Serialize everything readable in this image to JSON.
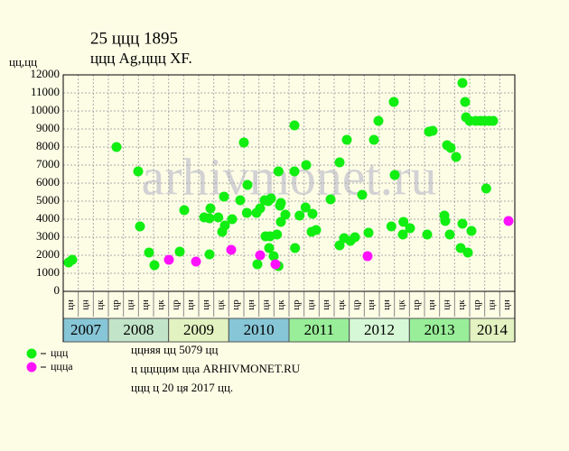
{
  "chart_data": {
    "type": "scatter",
    "title": "25 ццц 1895",
    "subtitle": "ццц Ag,ццц XF.",
    "y_unit": "цц,цц",
    "watermark": "arhivmonet.ru",
    "xlim": [
      0,
      30
    ],
    "ylim": [
      0,
      12000
    ],
    "yticks": [
      0,
      1000,
      2000,
      3000,
      4000,
      5000,
      6000,
      7000,
      8000,
      9000,
      10000,
      11000,
      12000
    ],
    "grid": true,
    "years": [
      {
        "label": "2007",
        "color": "#87c6d6",
        "months": [
          "цн",
          "цн",
          "цк"
        ]
      },
      {
        "label": "2008",
        "color": "#c2e4c8",
        "months": [
          "цр",
          "цн",
          "цн",
          "цк"
        ]
      },
      {
        "label": "2009",
        "color": "#e2f2c0",
        "months": [
          "цр",
          "цн",
          "цн",
          "цк"
        ]
      },
      {
        "label": "2010",
        "color": "#87c6d6",
        "months": [
          "цр",
          "цн",
          "цн",
          "цк"
        ]
      },
      {
        "label": "2011",
        "color": "#99ee99",
        "months": [
          "цр",
          "цн",
          "цн",
          "цк"
        ]
      },
      {
        "label": "2012",
        "color": "#d6f8d6",
        "months": [
          "цр",
          "цн",
          "цн",
          "цк"
        ]
      },
      {
        "label": "2013",
        "color": "#99ee99",
        "months": [
          "цр",
          "цн",
          "цн",
          "цк"
        ]
      },
      {
        "label": "2014",
        "color": "#e2f2c0",
        "months": [
          "цр",
          "цн",
          "цн"
        ]
      }
    ],
    "series": [
      {
        "name": "ццц",
        "color": "#11ee11",
        "x": [
          0.36,
          0.6,
          3.54,
          4.98,
          5.1,
          5.7,
          6.06,
          7.74,
          8.04,
          9.36,
          9.72,
          9.72,
          9.78,
          10.3,
          10.56,
          10.68,
          10.74,
          11.22,
          11.76,
          12,
          12.2,
          12.24,
          12.84,
          12.9,
          13.08,
          13.38,
          13.44,
          13.62,
          13.68,
          13.74,
          13.8,
          13.98,
          14.2,
          14.3,
          14.3,
          14.4,
          14.46,
          14.46,
          14.76,
          15.36,
          15.4,
          15.36,
          15.7,
          16.1,
          16.14,
          16.5,
          16.56,
          16.8,
          17.76,
          18.36,
          18.36,
          18.66,
          18.84,
          19.08,
          19.38,
          19.86,
          20.28,
          20.64,
          20.94,
          21.96,
          22.02,
          21.8,
          22.6,
          22.56,
          23.04,
          24.18,
          24.3,
          24.54,
          25.32,
          25.38,
          25.5,
          25.68,
          25.74,
          26.1,
          26.4,
          26.52,
          26.52,
          26.7,
          26.76,
          26.88,
          27,
          27.12,
          27.4,
          27.72,
          28,
          28.1,
          28.3,
          28.56
        ],
        "values": [
          1600,
          1750,
          8000,
          6650,
          3600,
          2150,
          1450,
          2200,
          4500,
          4100,
          4050,
          2050,
          4600,
          4100,
          3300,
          5250,
          3650,
          4000,
          5050,
          8250,
          4350,
          5900,
          4350,
          1500,
          4600,
          5050,
          3050,
          5000,
          2400,
          3050,
          5150,
          1950,
          3150,
          1400,
          6650,
          4750,
          3850,
          4900,
          4250,
          9200,
          2400,
          6650,
          4200,
          4650,
          7000,
          3300,
          4300,
          3400,
          5100,
          7150,
          2550,
          2950,
          8400,
          2800,
          3000,
          5350,
          3250,
          8400,
          9450,
          10500,
          6450,
          3600,
          3850,
          3150,
          3500,
          3150,
          8850,
          8900,
          4200,
          3900,
          8100,
          3150,
          7950,
          7450,
          2400,
          11550,
          3750,
          10500,
          9650,
          2150,
          9450,
          3350,
          9450,
          9450,
          9450,
          5700,
          9450,
          9450
        ]
      },
      {
        "name": "цццa",
        "color": "#ff11ff",
        "x": [
          7.02,
          8.82,
          11.16,
          13.08,
          14.1,
          20.22,
          29.58
        ],
        "values": [
          1750,
          1650,
          2300,
          2000,
          1500,
          1950,
          3900
        ]
      }
    ],
    "notes": [
      "ццняя цц 5079 цц",
      "ц ццццим цца ARHIVMONET.RU",
      "ццц ц 20 ця 2017 цц."
    ]
  }
}
